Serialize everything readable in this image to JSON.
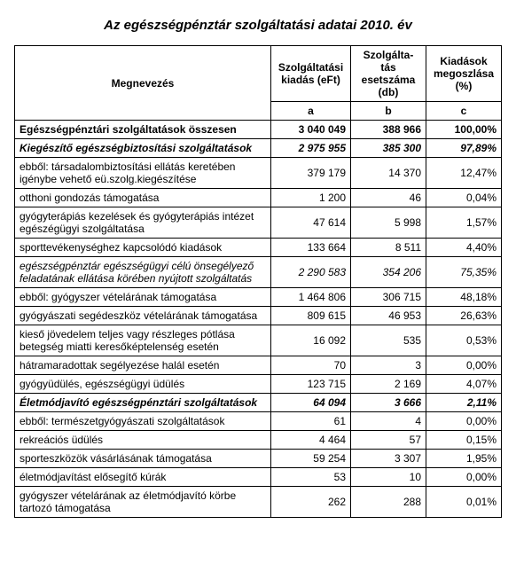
{
  "title": "Az egészségpénztár szolgáltatási adatai 2010. év",
  "headers": {
    "name": "Megnevezés",
    "col_a": "Szolgáltatási kiadás (eFt)",
    "col_b": "Szolgálta-\ntás esetszáma (db)",
    "col_c": "Kiadások megoszlása (%)",
    "sub_a": "a",
    "sub_b": "b",
    "sub_c": "c"
  },
  "rows": [
    {
      "style": "bold",
      "label": "Egészségpénztári szolgáltatások összesen",
      "a": "3 040 049",
      "b": "388 966",
      "c": "100,00%"
    },
    {
      "style": "bolditalic",
      "label": "Kiegészítő egészségbiztosítási szolgáltatások",
      "a": "2 975 955",
      "b": "385 300",
      "c": "97,89%"
    },
    {
      "style": "",
      "label": "ebből: társadalombiztosítási ellátás keretében igénybe vehető eü.szolg.kiegészítése",
      "a": "379 179",
      "b": "14 370",
      "c": "12,47%"
    },
    {
      "style": "",
      "label": "otthoni gondozás támogatása",
      "a": "1 200",
      "b": "46",
      "c": "0,04%"
    },
    {
      "style": "",
      "label": "gyógyterápiás kezelések és gyógyterápiás intézet egészégügyi szolgáltatása",
      "a": "47 614",
      "b": "5 998",
      "c": "1,57%"
    },
    {
      "style": "",
      "label": "sporttevékenységhez kapcsolódó kiadások",
      "a": "133 664",
      "b": "8 511",
      "c": "4,40%"
    },
    {
      "style": "italic",
      "label": "egészségpénztár egészségügyi célú önsegélyező feladatának ellátása körében nyújtott szolgáltatás",
      "a": "2 290 583",
      "b": "354 206",
      "c": "75,35%"
    },
    {
      "style": "",
      "label": "ebből: gyógyszer vételárának támogatása",
      "a": "1 464 806",
      "b": "306 715",
      "c": "48,18%"
    },
    {
      "style": "",
      "label": "gyógyászati segédeszköz vételárának támogatása",
      "a": "809 615",
      "b": "46 953",
      "c": "26,63%"
    },
    {
      "style": "",
      "label": "kieső jövedelem teljes vagy részleges pótlása betegség miatti keresőképtelenség esetén",
      "a": "16 092",
      "b": "535",
      "c": "0,53%"
    },
    {
      "style": "",
      "label": "hátramaradottak segélyezése halál esetén",
      "a": "70",
      "b": "3",
      "c": "0,00%"
    },
    {
      "style": "",
      "label": "gyógyüdülés, egészségügyi üdülés",
      "a": "123 715",
      "b": "2 169",
      "c": "4,07%"
    },
    {
      "style": "bolditalic",
      "label": "Életmódjavító egészségpénztári szolgáltatások",
      "a": "64 094",
      "b": "3 666",
      "c": "2,11%"
    },
    {
      "style": "",
      "label": "ebből: természetgyógyászati szolgáltatások",
      "a": "61",
      "b": "4",
      "c": "0,00%"
    },
    {
      "style": "",
      "label": "rekreációs üdülés",
      "a": "4 464",
      "b": "57",
      "c": "0,15%"
    },
    {
      "style": "",
      "label": "sporteszközök vásárlásának támogatása",
      "a": "59 254",
      "b": "3 307",
      "c": "1,95%"
    },
    {
      "style": "",
      "label": "életmódjavítást elősegítő kúrák",
      "a": "53",
      "b": "10",
      "c": "0,00%"
    },
    {
      "style": "",
      "label": "gyógyszer vételárának az életmódjavító  körbe tartozó támogatása",
      "a": "262",
      "b": "288",
      "c": "0,01%"
    }
  ]
}
